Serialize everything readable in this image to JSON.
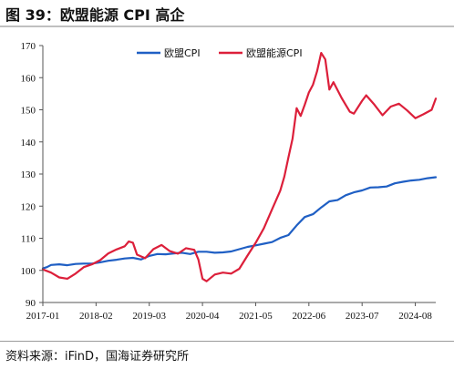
{
  "figure_title": "图 39：欧盟能源 CPI 高企",
  "source_note": "资料来源：iFinD，国海证券研究所",
  "colors": {
    "series_1": "#1f5fc4",
    "series_2": "#dc1f3a",
    "axis": "#555555",
    "text": "#111111"
  },
  "chart_data": {
    "type": "line",
    "title": "",
    "xlabel": "",
    "ylabel": "",
    "ylim": [
      90,
      170
    ],
    "yticks": [
      90,
      100,
      110,
      120,
      130,
      140,
      150,
      160,
      170
    ],
    "xlim": [
      "2017-01",
      "2025-01"
    ],
    "xticks": [
      "2017-01",
      "2018-02",
      "2019-03",
      "2020-04",
      "2021-05",
      "2022-06",
      "2023-07",
      "2024-08"
    ],
    "grid": false,
    "legend_position": "top-center",
    "series": [
      {
        "name": "欧盟CPI",
        "color": "#1f5fc4",
        "points": [
          [
            "2017-01",
            100.6
          ],
          [
            "2017-02",
            101.0
          ],
          [
            "2017-03",
            101.7
          ],
          [
            "2017-05",
            101.9
          ],
          [
            "2017-07",
            101.6
          ],
          [
            "2017-09",
            102.0
          ],
          [
            "2017-11",
            102.1
          ],
          [
            "2018-01",
            102.1
          ],
          [
            "2018-03",
            102.5
          ],
          [
            "2018-05",
            103.0
          ],
          [
            "2018-07",
            103.3
          ],
          [
            "2018-09",
            103.7
          ],
          [
            "2018-11",
            103.9
          ],
          [
            "2019-01",
            103.4
          ],
          [
            "2019-03",
            104.5
          ],
          [
            "2019-05",
            105.1
          ],
          [
            "2019-07",
            105.0
          ],
          [
            "2019-09",
            105.3
          ],
          [
            "2019-11",
            105.5
          ],
          [
            "2020-01",
            105.1
          ],
          [
            "2020-03",
            105.8
          ],
          [
            "2020-05",
            105.8
          ],
          [
            "2020-07",
            105.5
          ],
          [
            "2020-09",
            105.6
          ],
          [
            "2020-11",
            105.9
          ],
          [
            "2021-01",
            106.6
          ],
          [
            "2021-03",
            107.3
          ],
          [
            "2021-05",
            107.8
          ],
          [
            "2021-07",
            108.3
          ],
          [
            "2021-09",
            108.8
          ],
          [
            "2021-11",
            110.1
          ],
          [
            "2022-01",
            111.0
          ],
          [
            "2022-03",
            114.0
          ],
          [
            "2022-05",
            116.6
          ],
          [
            "2022-07",
            117.5
          ],
          [
            "2022-09",
            119.6
          ],
          [
            "2022-11",
            121.5
          ],
          [
            "2023-01",
            121.9
          ],
          [
            "2023-03",
            123.4
          ],
          [
            "2023-05",
            124.3
          ],
          [
            "2023-07",
            124.9
          ],
          [
            "2023-09",
            125.8
          ],
          [
            "2023-11",
            125.9
          ],
          [
            "2024-01",
            126.1
          ],
          [
            "2024-03",
            127.1
          ],
          [
            "2024-05",
            127.6
          ],
          [
            "2024-07",
            128.0
          ],
          [
            "2024-09",
            128.2
          ],
          [
            "2024-11",
            128.7
          ],
          [
            "2025-01",
            129.0
          ]
        ]
      },
      {
        "name": "欧盟能源CPI",
        "color": "#dc1f3a",
        "points": [
          [
            "2017-01",
            100.3
          ],
          [
            "2017-03",
            99.3
          ],
          [
            "2017-05",
            97.8
          ],
          [
            "2017-07",
            97.4
          ],
          [
            "2017-09",
            99.0
          ],
          [
            "2017-11",
            101.0
          ],
          [
            "2018-01",
            101.9
          ],
          [
            "2018-03",
            103.2
          ],
          [
            "2018-05",
            105.3
          ],
          [
            "2018-07",
            106.5
          ],
          [
            "2018-09",
            107.5
          ],
          [
            "2018-10",
            109.0
          ],
          [
            "2018-11",
            108.6
          ],
          [
            "2018-12",
            104.9
          ],
          [
            "2019-02",
            103.8
          ],
          [
            "2019-04",
            106.6
          ],
          [
            "2019-06",
            107.9
          ],
          [
            "2019-08",
            106.0
          ],
          [
            "2019-10",
            105.2
          ],
          [
            "2019-12",
            106.9
          ],
          [
            "2020-02",
            106.4
          ],
          [
            "2020-03",
            103.4
          ],
          [
            "2020-04",
            97.4
          ],
          [
            "2020-05",
            96.6
          ],
          [
            "2020-07",
            98.7
          ],
          [
            "2020-09",
            99.3
          ],
          [
            "2020-11",
            99.0
          ],
          [
            "2021-01",
            100.5
          ],
          [
            "2021-03",
            104.6
          ],
          [
            "2021-05",
            108.6
          ],
          [
            "2021-07",
            113.1
          ],
          [
            "2021-09",
            119.0
          ],
          [
            "2021-11",
            124.8
          ],
          [
            "2021-12",
            129.2
          ],
          [
            "2022-01",
            135.2
          ],
          [
            "2022-02",
            141.0
          ],
          [
            "2022-03",
            150.5
          ],
          [
            "2022-04",
            148.1
          ],
          [
            "2022-05",
            151.6
          ],
          [
            "2022-06",
            155.4
          ],
          [
            "2022-07",
            157.8
          ],
          [
            "2022-08",
            162.0
          ],
          [
            "2022-09",
            167.7
          ],
          [
            "2022-10",
            165.7
          ],
          [
            "2022-11",
            156.3
          ],
          [
            "2022-12",
            158.6
          ],
          [
            "2023-02",
            153.7
          ],
          [
            "2023-04",
            149.4
          ],
          [
            "2023-05",
            148.8
          ],
          [
            "2023-07",
            152.8
          ],
          [
            "2023-08",
            154.5
          ],
          [
            "2023-10",
            151.6
          ],
          [
            "2023-12",
            148.3
          ],
          [
            "2024-02",
            151.0
          ],
          [
            "2024-04",
            151.9
          ],
          [
            "2024-06",
            149.8
          ],
          [
            "2024-08",
            147.4
          ],
          [
            "2024-10",
            148.6
          ],
          [
            "2024-12",
            150.0
          ],
          [
            "2025-01",
            153.5
          ]
        ]
      }
    ]
  }
}
